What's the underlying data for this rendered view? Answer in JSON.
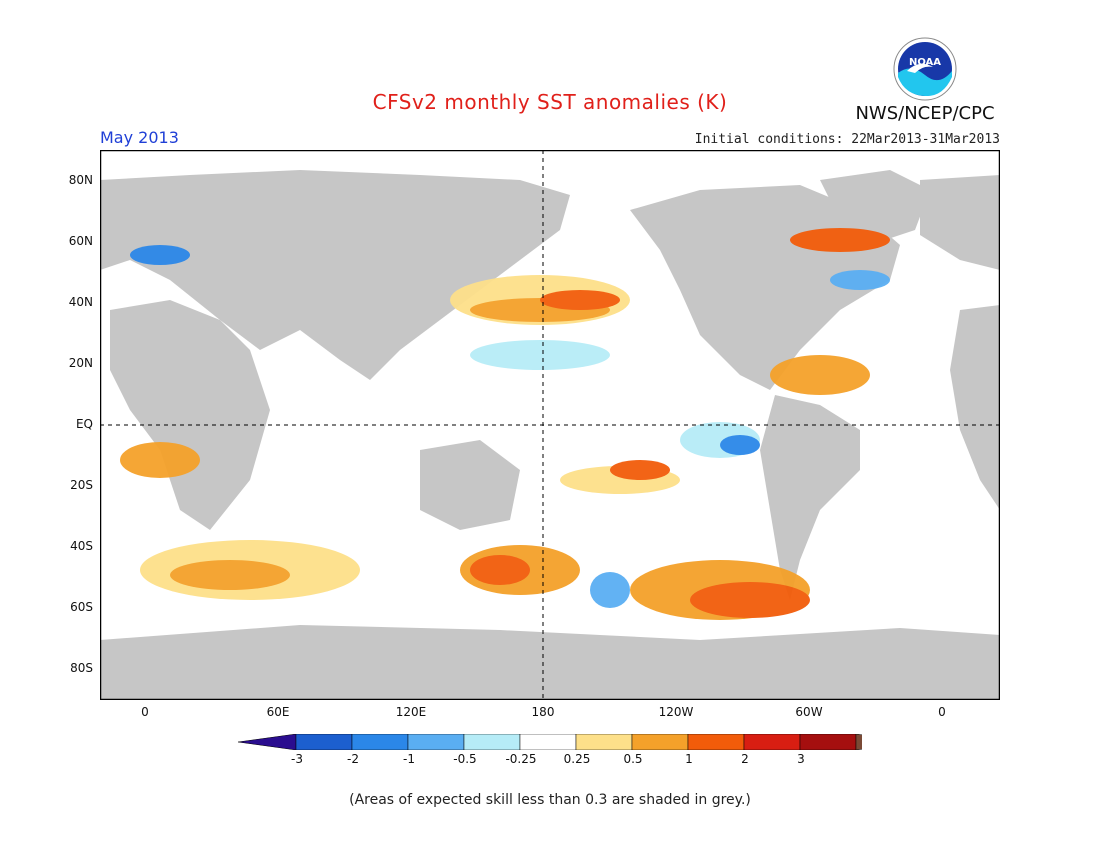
{
  "title": "CFSv2 monthly SST anomalies (K)",
  "month": "May 2013",
  "initial_conditions": "Initial conditions: 22Mar2013-31Mar2013",
  "agency": "NWS/NCEP/CPC",
  "logo_text": "NOAA",
  "footnote": "(Areas of expected skill less than 0.3 are shaded in grey.)",
  "axes": {
    "y_ticks": [
      "80N",
      "60N",
      "40N",
      "20N",
      "EQ",
      "20S",
      "40S",
      "60S",
      "80S"
    ],
    "x_ticks": [
      "0",
      "60E",
      "120E",
      "180",
      "120W",
      "60W",
      "0"
    ]
  },
  "colorbar": {
    "labels": [
      "-3",
      "-2",
      "-1",
      "-0.5",
      "-0.25",
      "0.25",
      "0.5",
      "1",
      "2",
      "3"
    ],
    "colors": [
      "#2a0d8f",
      "#1c5fcf",
      "#2b87e8",
      "#5aaef2",
      "#b6ecf7",
      "#ffffff",
      "#fde08a",
      "#f4a12a",
      "#f25c0a",
      "#d81e12",
      "#a50f0f",
      "#7a4a36"
    ]
  },
  "map_colors": {
    "land": "#c6c6c6",
    "ocean": "#ffffff",
    "grey_low_skill": "#bfbfbf"
  }
}
